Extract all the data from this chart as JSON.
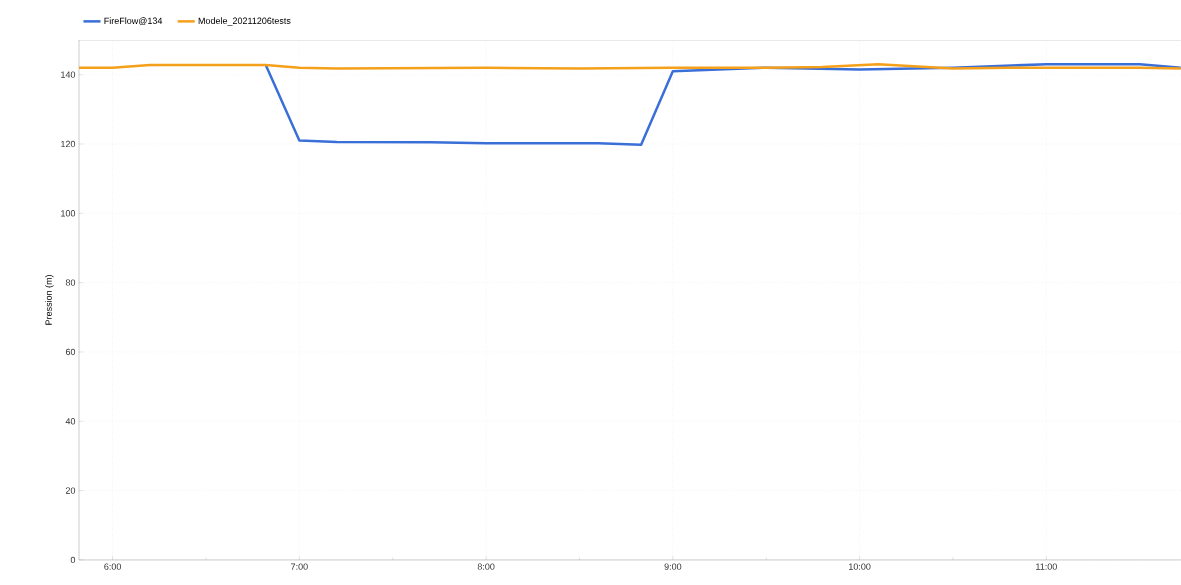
{
  "chart_data": {
    "type": "line",
    "ylabel": "Pression (m)",
    "xlim": [
      5.82,
      11.72
    ],
    "ylim": [
      0,
      150
    ],
    "xticks": [
      {
        "value": 6,
        "label": "6:00"
      },
      {
        "value": 7,
        "label": "7:00"
      },
      {
        "value": 8,
        "label": "8:00"
      },
      {
        "value": 9,
        "label": "9:00"
      },
      {
        "value": 10,
        "label": "10:00"
      },
      {
        "value": 11,
        "label": "11:00"
      }
    ],
    "yticks": [
      0,
      20,
      40,
      60,
      80,
      100,
      120,
      140
    ],
    "grid": true,
    "legend": "top left",
    "line_style": "solid",
    "marker": "none",
    "series": [
      {
        "name": "FireFlow@134",
        "color": "#3a6fd8",
        "x": [
          6.82,
          7.0,
          7.2,
          7.7,
          8.0,
          8.6,
          8.83,
          9.0,
          9.5,
          10.0,
          10.5,
          11.0,
          11.5,
          11.72
        ],
        "values": [
          142.8,
          121,
          120.6,
          120.5,
          120.2,
          120.2,
          119.8,
          141,
          142,
          141.5,
          142,
          143,
          143,
          142
        ]
      },
      {
        "name": "Modele_20211206tests",
        "color": "#f5a01a",
        "x": [
          5.82,
          6.0,
          6.2,
          6.82,
          7.0,
          7.2,
          8.0,
          8.5,
          9.0,
          9.5,
          9.8,
          10.1,
          10.5,
          10.8,
          11.5,
          11.72
        ],
        "values": [
          142,
          142,
          142.8,
          142.8,
          142,
          141.8,
          142,
          141.8,
          142,
          142,
          142.2,
          143,
          141.8,
          142,
          142,
          141.8
        ]
      }
    ]
  }
}
